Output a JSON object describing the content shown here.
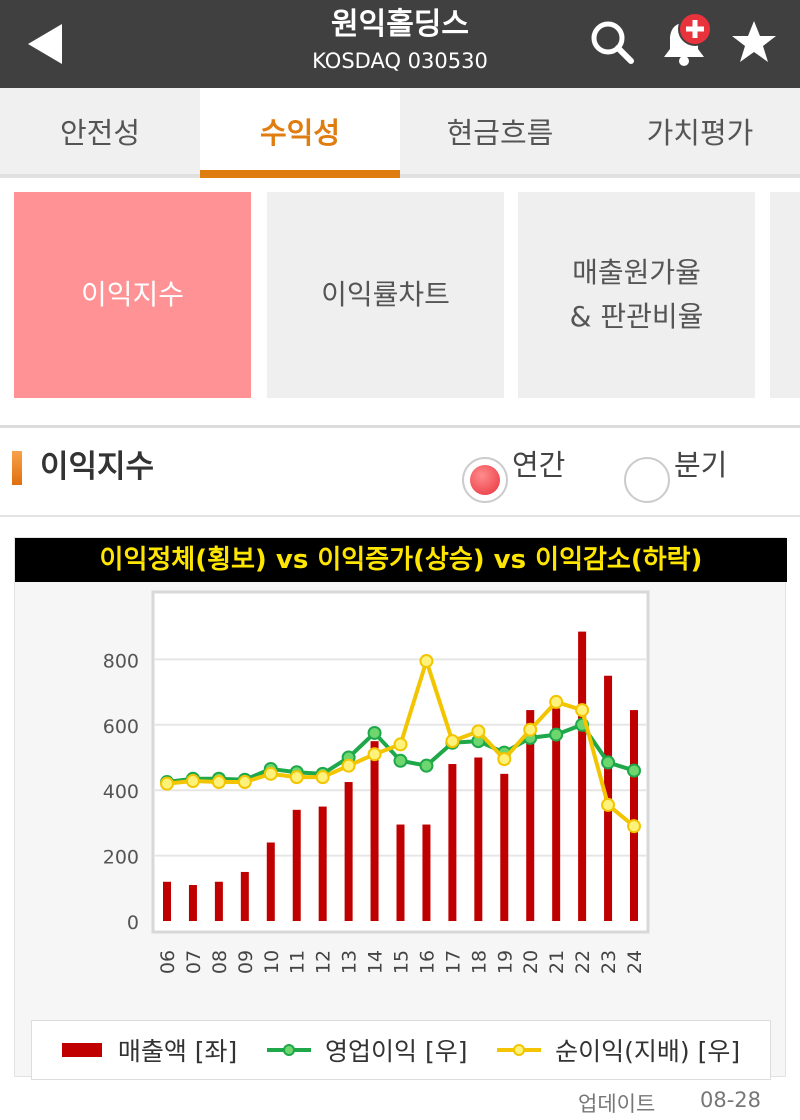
{
  "header": {
    "title": "원익홀딩스",
    "subtitle": "KOSDAQ 030530"
  },
  "tabs": [
    {
      "label": "안전성",
      "active": false
    },
    {
      "label": "수익성",
      "active": true
    },
    {
      "label": "현금흐름",
      "active": false
    },
    {
      "label": "가치평가",
      "active": false
    }
  ],
  "subtabs": [
    {
      "label": "이익지수",
      "active": true
    },
    {
      "label": "이익률차트",
      "active": false
    },
    {
      "label_line1": "매출원가율",
      "label_line2": "& 판관비율",
      "active": false
    }
  ],
  "section": {
    "title": "이익지수",
    "period_options": [
      {
        "label": "연간",
        "selected": true
      },
      {
        "label": "분기",
        "selected": false
      }
    ]
  },
  "chart_data": {
    "type": "bar+line",
    "title": "이익정체(횡보) vs 이익증가(상승) vs 이익감소(하락)",
    "categories": [
      "06",
      "07",
      "08",
      "09",
      "10",
      "11",
      "12",
      "13",
      "14",
      "15",
      "16",
      "17",
      "18",
      "19",
      "20",
      "21",
      "22",
      "23",
      "24"
    ],
    "y_ticks": [
      0,
      200,
      400,
      600,
      800
    ],
    "ylim": [
      0,
      1000
    ],
    "grid": true,
    "legend_position": "bottom",
    "series": [
      {
        "name": "매출액 [좌]",
        "kind": "bar",
        "color": "#c00000",
        "values": [
          120,
          110,
          120,
          150,
          240,
          340,
          350,
          425,
          550,
          295,
          295,
          480,
          500,
          450,
          645,
          650,
          885,
          750,
          645
        ]
      },
      {
        "name": "영업이익 [우]",
        "kind": "line",
        "color": "#1ea84a",
        "values": [
          425,
          435,
          435,
          432,
          465,
          455,
          450,
          500,
          575,
          490,
          475,
          545,
          550,
          515,
          560,
          570,
          600,
          485,
          460
        ]
      },
      {
        "name": "순이익(지배) [우]",
        "kind": "line",
        "color": "#f2c500",
        "values": [
          420,
          428,
          425,
          425,
          450,
          440,
          440,
          475,
          510,
          540,
          795,
          550,
          580,
          495,
          585,
          670,
          645,
          355,
          290
        ]
      }
    ]
  },
  "footer": {
    "update_label": "업데이트",
    "update_date": "08-28"
  },
  "colors": {
    "header_bg": "#404040",
    "accent": "#e07d10",
    "active_subtab": "#fe9294",
    "radio_active": "#e8323c",
    "chart_title_text": "#ffe600"
  }
}
